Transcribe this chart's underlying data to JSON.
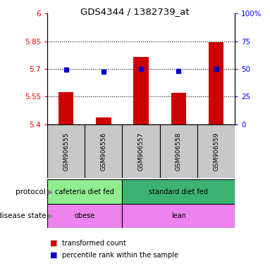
{
  "title": "GDS4344 / 1382739_at",
  "samples": [
    "GSM906555",
    "GSM906556",
    "GSM906557",
    "GSM906558",
    "GSM906559"
  ],
  "red_values": [
    5.575,
    5.435,
    5.765,
    5.57,
    5.845
  ],
  "blue_values": [
    5.695,
    5.685,
    5.7,
    5.69,
    5.7
  ],
  "ylim_left": [
    5.4,
    6.0
  ],
  "ylim_right": [
    0,
    100
  ],
  "yticks_left": [
    5.4,
    5.55,
    5.7,
    5.85,
    6.0
  ],
  "ytick_labels_left": [
    "5.4",
    "5.55",
    "5.7",
    "5.85",
    "6"
  ],
  "yticks_right": [
    0,
    25,
    50,
    75,
    100
  ],
  "ytick_labels_right": [
    "0",
    "25",
    "50",
    "75",
    "100%"
  ],
  "hlines": [
    5.55,
    5.7,
    5.85
  ],
  "protocol_labels": [
    "cafeteria diet fed",
    "standard diet fed"
  ],
  "protocol_span_ends": [
    2,
    5
  ],
  "disease_labels": [
    "obese",
    "lean"
  ],
  "disease_span_ends": [
    2,
    5
  ],
  "bar_color": "#CC0000",
  "dot_color": "#0000CC",
  "sample_box_color": "#C8C8C8",
  "protocol_color1": "#90EE90",
  "protocol_color2": "#3CB371",
  "disease_color": "#EE82EE",
  "background_color": "#ffffff",
  "legend_red_label": "transformed count",
  "legend_blue_label": "percentile rank within the sample",
  "protocol_row_label": "protocol",
  "disease_row_label": "disease state",
  "bar_width": 0.4
}
